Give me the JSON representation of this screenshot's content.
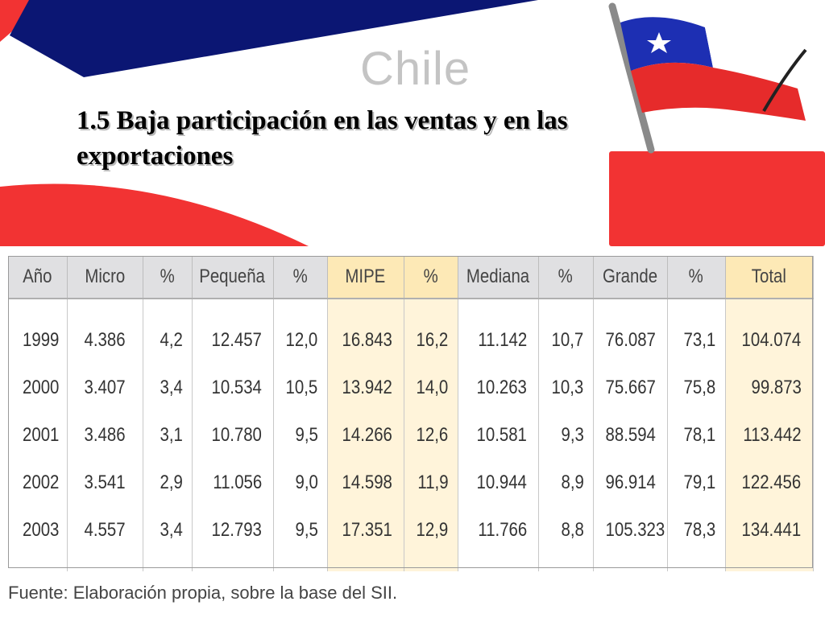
{
  "slide": {
    "logo_text": "Chile",
    "title": "1.5 Baja participación en las ventas y en las exportaciones",
    "source": "Fuente: Elaboración propia, sobre la base del SII."
  },
  "colors": {
    "navy": "#0b1673",
    "red": "#f23333",
    "flag_red": "#e62b2b",
    "flag_blue": "#1d2fb3",
    "highlight_header": "#fde9b6",
    "highlight_body": "#fff4da"
  },
  "table": {
    "headers": [
      "Año",
      "Micro",
      "%",
      "Pequeña",
      "%",
      "MIPE",
      "%",
      "Mediana",
      "%",
      "Grande",
      "%",
      "Total"
    ],
    "rows": [
      [
        "1999",
        "4.386",
        "4,2",
        "12.457",
        "12,0",
        "16.843",
        "16,2",
        "11.142",
        "10,7",
        "76.087",
        "73,1",
        "104.074"
      ],
      [
        "2000",
        "3.407",
        "3,4",
        "10.534",
        "10,5",
        "13.942",
        "14,0",
        "10.263",
        "10,3",
        "75.667",
        "75,8",
        "99.873"
      ],
      [
        "2001",
        "3.486",
        "3,1",
        "10.780",
        "9,5",
        "14.266",
        "12,6",
        "10.581",
        "9,3",
        "88.594",
        "78,1",
        "113.442"
      ],
      [
        "2002",
        "3.541",
        "2,9",
        "11.056",
        "9,0",
        "14.598",
        "11,9",
        "10.944",
        "8,9",
        "96.914",
        "79,1",
        "122.456"
      ],
      [
        "2003",
        "4.557",
        "3,4",
        "12.793",
        "9,5",
        "17.351",
        "12,9",
        "11.766",
        "8,8",
        "105.323",
        "78,3",
        "134.441"
      ]
    ]
  }
}
